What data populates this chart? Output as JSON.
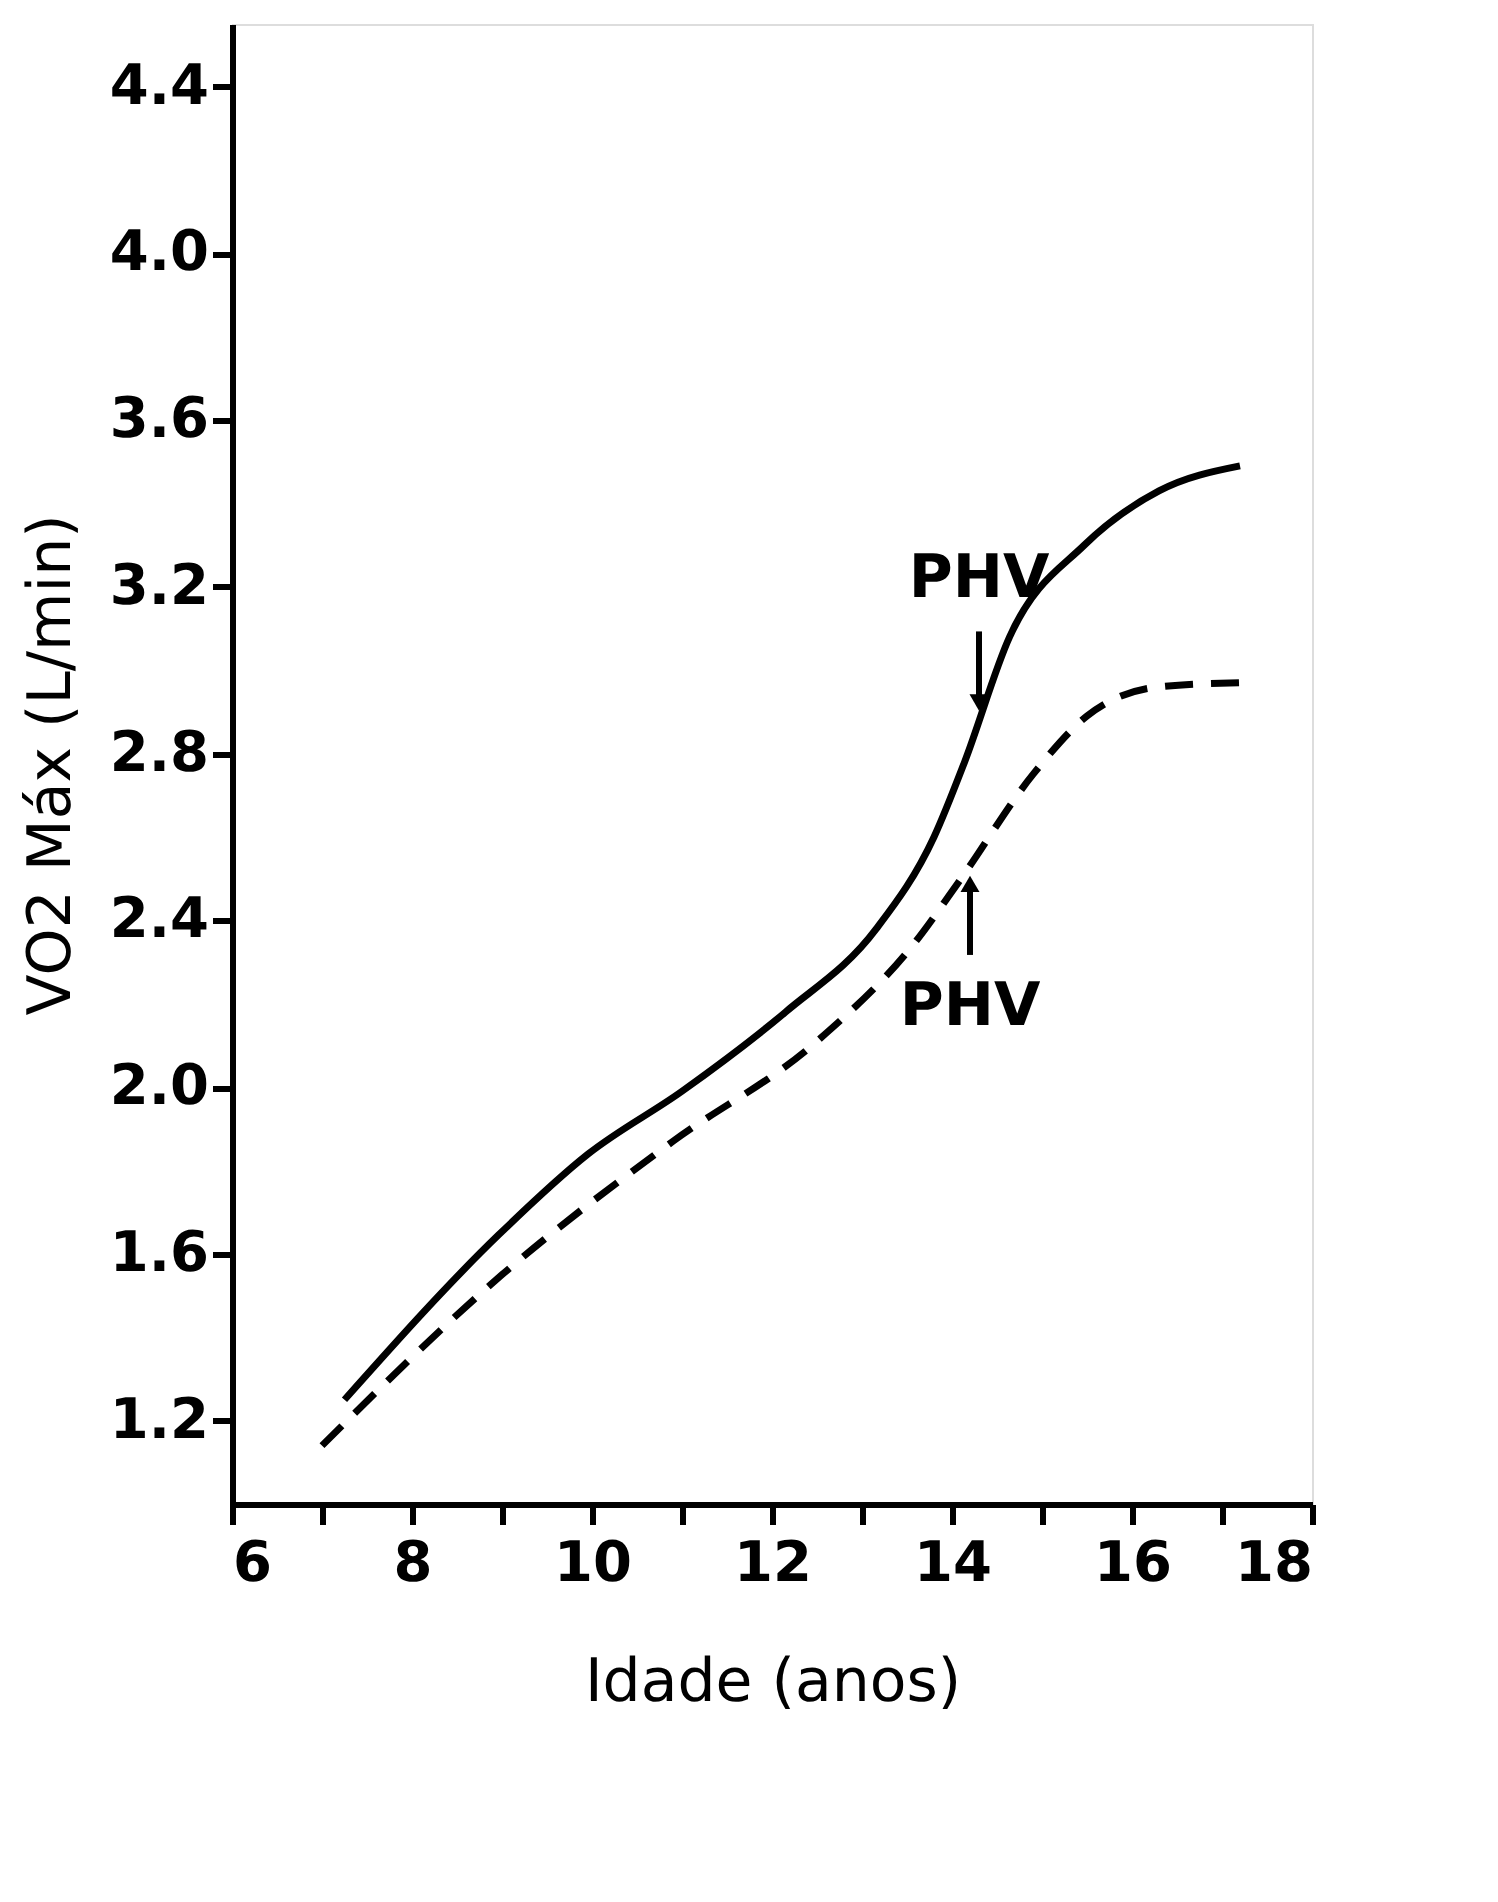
{
  "chart_data": {
    "type": "line",
    "xlabel": "Idade (anos)",
    "ylabel": "VO2 Máx (L/min)",
    "xlim": [
      6,
      18
    ],
    "ylim": [
      1.0,
      4.55
    ],
    "xticks": [
      6,
      {
        "value": 7,
        "label": null
      },
      8,
      {
        "value": 9,
        "label": null
      },
      10,
      {
        "value": 11,
        "label": null
      },
      12,
      {
        "value": 13,
        "label": null
      },
      14,
      {
        "value": 15,
        "label": null
      },
      16,
      {
        "value": 17,
        "label": null
      },
      18
    ],
    "yticks": [
      1.2,
      1.6,
      {
        "value": 2,
        "label": "2.0"
      },
      2.4,
      2.8,
      3.2,
      3.6,
      {
        "value": 4,
        "label": "4.0"
      },
      4.4
    ],
    "grid": false,
    "marker": "none",
    "series": [
      {
        "color": "#000000",
        "line_style": "solid",
        "x": [
          7.25,
          8.96,
          9.96,
          11.0,
          12.15,
          13.16,
          13.8,
          14.14,
          14.64,
          15.47,
          16.3,
          17.2
        ],
        "values": [
          1.25,
          1.645,
          1.84,
          1.99,
          2.18,
          2.38,
          2.6,
          2.78,
          3.08,
          3.3,
          3.43,
          3.49
        ]
      },
      {
        "color": "#000000",
        "line_style": "dashed",
        "x": [
          7.0,
          9.0,
          10.9,
          12.5,
          13.6,
          14.1,
          14.9,
          15.5,
          16.3,
          17.2
        ],
        "values": [
          1.14,
          1.55,
          1.87,
          2.11,
          2.35,
          2.5,
          2.75,
          2.89,
          2.96,
          2.97
        ]
      }
    ],
    "annotations": [
      {
        "text": "PHV",
        "x": 14.3,
        "y": 2.88
      },
      {
        "text": "PHV",
        "x": 14.2,
        "y": 2.53
      }
    ]
  }
}
